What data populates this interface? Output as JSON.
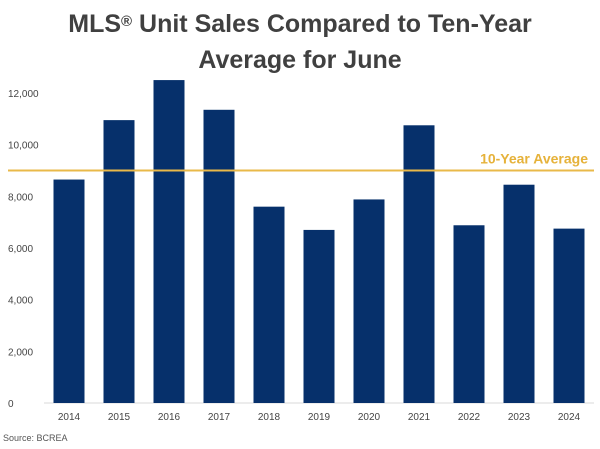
{
  "title": {
    "line1_prefix": "MLS",
    "line1_mark": "®",
    "line1_rest": " Unit Sales Compared to Ten-Year",
    "line2": "Average for June"
  },
  "source": "Source: BCREA",
  "colors": {
    "bar": "#06306b",
    "average_line": "#e9b949",
    "average_label": "#e6b23a",
    "gridline": "#d9d9d9"
  },
  "chart_data": {
    "type": "bar",
    "categories": [
      "2014",
      "2015",
      "2016",
      "2017",
      "2018",
      "2019",
      "2020",
      "2021",
      "2022",
      "2023",
      "2024"
    ],
    "values": [
      8650,
      10950,
      12500,
      11350,
      7600,
      6700,
      7880,
      10750,
      6880,
      8450,
      6750
    ],
    "ylim": [
      0,
      12000
    ],
    "yticks": [
      0,
      2000,
      4000,
      6000,
      8000,
      10000,
      12000
    ],
    "ytick_labels": [
      "0",
      "2,000",
      "4,000",
      "6,000",
      "8,000",
      "10,000",
      "12,000"
    ],
    "reference_line": {
      "label": "10-Year Average",
      "value": 9000
    },
    "grid": false
  }
}
